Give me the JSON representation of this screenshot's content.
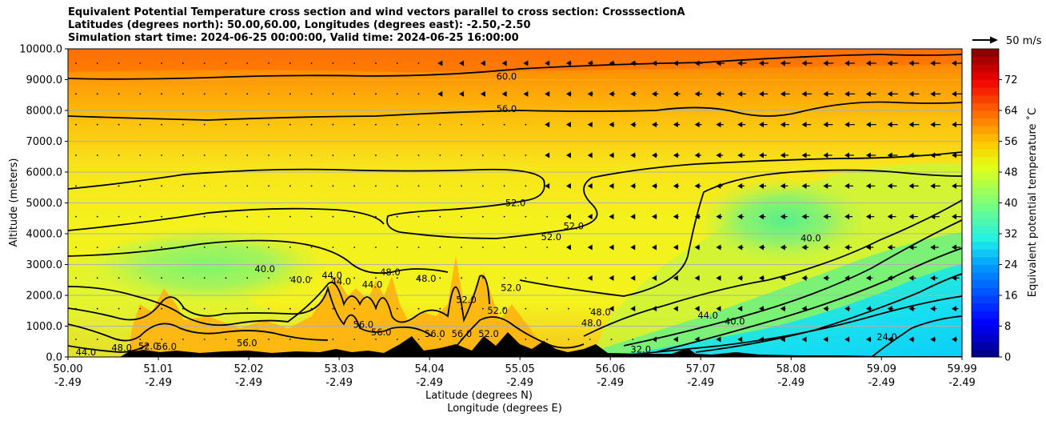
{
  "chart_data": {
    "type": "heatmap",
    "title_lines": [
      "Equivalent Potential Temperature cross section and wind vectors parallel to cross section: CrosssectionA",
      "Latitudes (degrees north): 50.00,60.00, Longitudes (degrees east): -2.50,-2.50",
      "Simulation start time: 2024-06-25 00:00:00, Valid time: 2024-06-25 16:00:00"
    ],
    "ylabel": "Altitude (meters)",
    "xlabel_1": "Latitude (degrees N)",
    "xlabel_2": "Longitude (degrees E)",
    "ylim": [
      0,
      10000
    ],
    "xlim": [
      50.0,
      59.99
    ],
    "y_ticks": [
      {
        "value": 0,
        "label": "0.0"
      },
      {
        "value": 1000,
        "label": "1000.0"
      },
      {
        "value": 2000,
        "label": "2000.0"
      },
      {
        "value": 3000,
        "label": "3000.0"
      },
      {
        "value": 4000,
        "label": "4000.0"
      },
      {
        "value": 5000,
        "label": "5000.0"
      },
      {
        "value": 6000,
        "label": "6000.0"
      },
      {
        "value": 7000,
        "label": "7000.0"
      },
      {
        "value": 8000,
        "label": "8000.0"
      },
      {
        "value": 9000,
        "label": "9000.0"
      },
      {
        "value": 10000,
        "label": "10000.0"
      }
    ],
    "x_ticks": [
      {
        "lat": 50.0,
        "lat_label": "50.00",
        "lon_label": "-2.49"
      },
      {
        "lat": 51.01,
        "lat_label": "51.01",
        "lon_label": "-2.49"
      },
      {
        "lat": 52.02,
        "lat_label": "52.02",
        "lon_label": "-2.49"
      },
      {
        "lat": 53.03,
        "lat_label": "53.03",
        "lon_label": "-2.49"
      },
      {
        "lat": 54.04,
        "lat_label": "54.04",
        "lon_label": "-2.49"
      },
      {
        "lat": 55.05,
        "lat_label": "55.05",
        "lon_label": "-2.49"
      },
      {
        "lat": 56.06,
        "lat_label": "56.06",
        "lon_label": "-2.49"
      },
      {
        "lat": 57.07,
        "lat_label": "57.07",
        "lon_label": "-2.49"
      },
      {
        "lat": 58.08,
        "lat_label": "58.08",
        "lon_label": "-2.49"
      },
      {
        "lat": 59.09,
        "lat_label": "59.09",
        "lon_label": "-2.49"
      },
      {
        "lat": 59.99,
        "lat_label": "59.99",
        "lon_label": "-2.49"
      }
    ],
    "colorbar": {
      "label": "Equivalent potential temperature ˚C",
      "min": 0,
      "max": 80,
      "ticks": [
        "0",
        "8",
        "16",
        "24",
        "32",
        "40",
        "48",
        "56",
        "64",
        "72"
      ]
    },
    "wind_key_label": "50 m/s",
    "contour_labels": [
      {
        "text": "60.0",
        "lat": 54.9,
        "alt": 9050
      },
      {
        "text": "56.0",
        "lat": 54.9,
        "alt": 8000
      },
      {
        "text": "52.0",
        "lat": 55.0,
        "alt": 4950
      },
      {
        "text": "52.0",
        "lat": 55.4,
        "alt": 3850
      },
      {
        "text": "52.0",
        "lat": 55.65,
        "alt": 4200
      },
      {
        "text": "40.0",
        "lat": 58.3,
        "alt": 3800
      },
      {
        "text": "40.0",
        "lat": 52.2,
        "alt": 2800
      },
      {
        "text": "40.0",
        "lat": 52.6,
        "alt": 2450
      },
      {
        "text": "44.0",
        "lat": 52.95,
        "alt": 2600
      },
      {
        "text": "44.0",
        "lat": 53.05,
        "alt": 2400
      },
      {
        "text": "44.0",
        "lat": 53.4,
        "alt": 2300
      },
      {
        "text": "48.0",
        "lat": 53.6,
        "alt": 2700
      },
      {
        "text": "48.0",
        "lat": 54.0,
        "alt": 2500
      },
      {
        "text": "52.0",
        "lat": 54.45,
        "alt": 1800
      },
      {
        "text": "52.0",
        "lat": 54.95,
        "alt": 2200
      },
      {
        "text": "52.0",
        "lat": 54.8,
        "alt": 1450
      },
      {
        "text": "48.0",
        "lat": 55.95,
        "alt": 1400
      },
      {
        "text": "48.0",
        "lat": 55.85,
        "alt": 1050
      },
      {
        "text": "44.0",
        "lat": 57.15,
        "alt": 1300
      },
      {
        "text": "40.0",
        "lat": 57.45,
        "alt": 1100
      },
      {
        "text": "24.0",
        "lat": 59.15,
        "alt": 600
      },
      {
        "text": "32.0",
        "lat": 56.4,
        "alt": 200
      },
      {
        "text": "56.0",
        "lat": 53.5,
        "alt": 750
      },
      {
        "text": "56.0",
        "lat": 53.3,
        "alt": 1000
      },
      {
        "text": "56.0",
        "lat": 54.1,
        "alt": 700
      },
      {
        "text": "56.0",
        "lat": 54.4,
        "alt": 700
      },
      {
        "text": "52.0",
        "lat": 54.7,
        "alt": 700
      },
      {
        "text": "56.0",
        "lat": 52.0,
        "alt": 400
      },
      {
        "text": "44.0",
        "lat": 50.2,
        "alt": 100
      },
      {
        "text": "48.0",
        "lat": 50.6,
        "alt": 250
      },
      {
        "text": "52.0",
        "lat": 50.9,
        "alt": 300
      },
      {
        "text": "56.0",
        "lat": 51.1,
        "alt": 280
      }
    ]
  }
}
